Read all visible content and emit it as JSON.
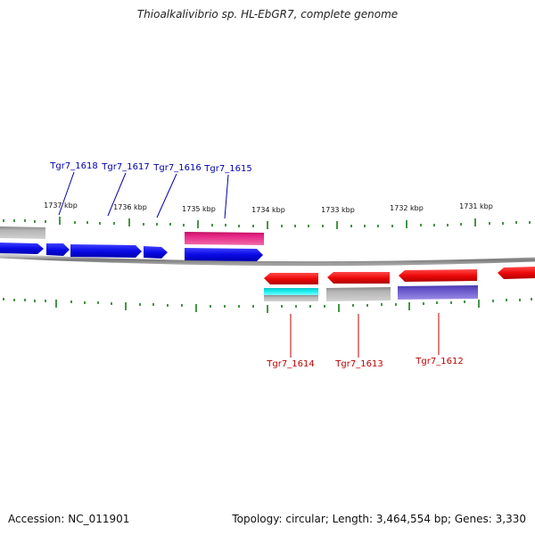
{
  "title": "Thioalkalivibrio sp. HL-EbGR7, complete genome",
  "accession": "Accession: NC_011901",
  "summary": "Topology: circular; Length: 3,464,554 bp; Genes: 3,330",
  "kbp_labels": [
    "1737 kbp",
    "1736 kbp",
    "1735 kbp",
    "1734 kbp",
    "1733 kbp",
    "1732 kbp",
    "1731 kbp"
  ],
  "gene_labels_top": [
    "Tgr7_1618",
    "Tgr7_1617",
    "Tgr7_1616",
    "Tgr7_1615"
  ],
  "gene_labels_bottom": [
    "Tgr7_1614",
    "Tgr7_1613",
    "Tgr7_1612"
  ],
  "colors": {
    "forward_cds": "#0a0ae6",
    "reverse_cds": "#ee0a0a",
    "backbone": "#8c8c8c",
    "ticks": "#1a7a1a",
    "label_top": "#0000aa",
    "label_bottom": "#bb0000",
    "pink_feature": "#e62585",
    "cyan_feature": "#19e6e6",
    "purple_feature": "#6a5acd",
    "gray_feature": "#a8a8a8"
  }
}
